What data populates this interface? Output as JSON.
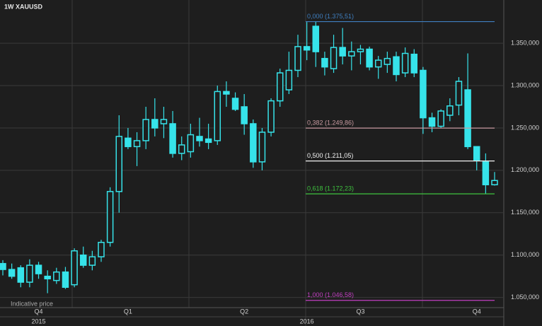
{
  "chart_data": {
    "type": "candlestick",
    "title": "1W  XAUUSD",
    "note": "Indicative price",
    "color": "#36e3ea",
    "ylim": [
      1038,
      1401
    ],
    "yticks": [
      {
        "value": 1050,
        "label": "1.050,000"
      },
      {
        "value": 1100,
        "label": "1.100,000"
      },
      {
        "value": 1150,
        "label": "1.150,000"
      },
      {
        "value": 1200,
        "label": "1.200,000"
      },
      {
        "value": 1250,
        "label": "1.250,000"
      },
      {
        "value": 1300,
        "label": "1.300,000"
      },
      {
        "value": 1350,
        "label": "1.350,000"
      }
    ],
    "grid": true,
    "categories": [
      null,
      null,
      null,
      null,
      "Q4",
      null,
      null,
      null,
      null,
      null,
      null,
      null,
      null,
      null,
      "Q1",
      null,
      null,
      null,
      null,
      null,
      null,
      null,
      null,
      null,
      null,
      null,
      null,
      "Q2",
      null,
      null,
      null,
      null,
      null,
      null,
      null,
      null,
      null,
      null,
      null,
      null,
      "Q3",
      null,
      null,
      null,
      null,
      null,
      null,
      null,
      null,
      null,
      null,
      null,
      null,
      "Q4",
      null,
      null
    ],
    "year_labels": [
      null,
      null,
      null,
      null,
      "2015",
      null,
      null,
      null,
      null,
      null,
      null,
      null,
      null,
      null,
      null,
      null,
      null,
      null,
      null,
      null,
      null,
      null,
      null,
      null,
      null,
      null,
      null,
      null,
      null,
      null,
      null,
      null,
      null,
      null,
      "2016",
      null,
      null,
      null,
      null,
      null,
      null,
      null,
      null,
      null,
      null,
      null,
      null,
      null,
      null,
      null,
      null,
      null,
      null,
      null,
      null,
      null
    ],
    "open": [
      1090,
      1083,
      1085,
      1068,
      1088,
      1075,
      1070,
      1080,
      1065,
      1100,
      1088,
      1098,
      1115,
      1175,
      1238,
      1228,
      1235,
      1260,
      1255,
      1255,
      1220,
      1222,
      1240,
      1237,
      1235,
      1293,
      1285,
      1275,
      1255,
      1210,
      1245,
      1282,
      1295,
      1318,
      1346,
      1370,
      1332,
      1320,
      1345,
      1335,
      1340,
      1343,
      1322,
      1325,
      1334,
      1315,
      1337,
      1318,
      1262,
      1252,
      1265,
      1277,
      1295,
      1228,
      1210,
      1183
    ],
    "high": [
      1094,
      1090,
      1088,
      1095,
      1092,
      1082,
      1085,
      1086,
      1108,
      1110,
      1105,
      1118,
      1180,
      1265,
      1250,
      1245,
      1275,
      1285,
      1275,
      1270,
      1240,
      1255,
      1262,
      1255,
      1300,
      1305,
      1292,
      1290,
      1260,
      1250,
      1285,
      1320,
      1340,
      1360,
      1375,
      1376,
      1340,
      1360,
      1368,
      1352,
      1348,
      1346,
      1335,
      1340,
      1340,
      1345,
      1343,
      1322,
      1268,
      1272,
      1285,
      1310,
      1338,
      1228,
      1220,
      1198
    ],
    "low": [
      1076,
      1072,
      1062,
      1062,
      1072,
      1055,
      1066,
      1060,
      1062,
      1085,
      1082,
      1092,
      1110,
      1150,
      1225,
      1205,
      1225,
      1240,
      1238,
      1215,
      1212,
      1215,
      1228,
      1225,
      1230,
      1275,
      1270,
      1242,
      1203,
      1200,
      1240,
      1275,
      1290,
      1310,
      1330,
      1322,
      1312,
      1315,
      1325,
      1318,
      1325,
      1318,
      1308,
      1315,
      1305,
      1310,
      1310,
      1243,
      1245,
      1250,
      1258,
      1265,
      1225,
      1200,
      1172,
      1182
    ],
    "close": [
      1083,
      1075,
      1068,
      1088,
      1078,
      1072,
      1080,
      1062,
      1105,
      1088,
      1098,
      1115,
      1175,
      1240,
      1228,
      1235,
      1260,
      1250,
      1260,
      1220,
      1230,
      1242,
      1235,
      1233,
      1293,
      1290,
      1272,
      1255,
      1210,
      1245,
      1282,
      1315,
      1318,
      1346,
      1342,
      1340,
      1322,
      1345,
      1335,
      1340,
      1343,
      1322,
      1330,
      1332,
      1313,
      1338,
      1315,
      1262,
      1252,
      1270,
      1276,
      1305,
      1228,
      1212,
      1183,
      1188
    ],
    "fibonacci": [
      {
        "label": "0,000 (1.375,51)",
        "value": 1375.51,
        "color": "#3f7fc0"
      },
      {
        "label": "0,382 (1.249,86)",
        "value": 1249.86,
        "color": "#c89aa0"
      },
      {
        "label": "0,500 (1.211,05)",
        "value": 1211.05,
        "color": "#f2f2f2"
      },
      {
        "label": "0,618 (1.172,23)",
        "value": 1172.23,
        "color": "#3fc43f"
      },
      {
        "label": "1,000 (1.046,58)",
        "value": 1046.58,
        "color": "#c03fc0"
      }
    ]
  }
}
